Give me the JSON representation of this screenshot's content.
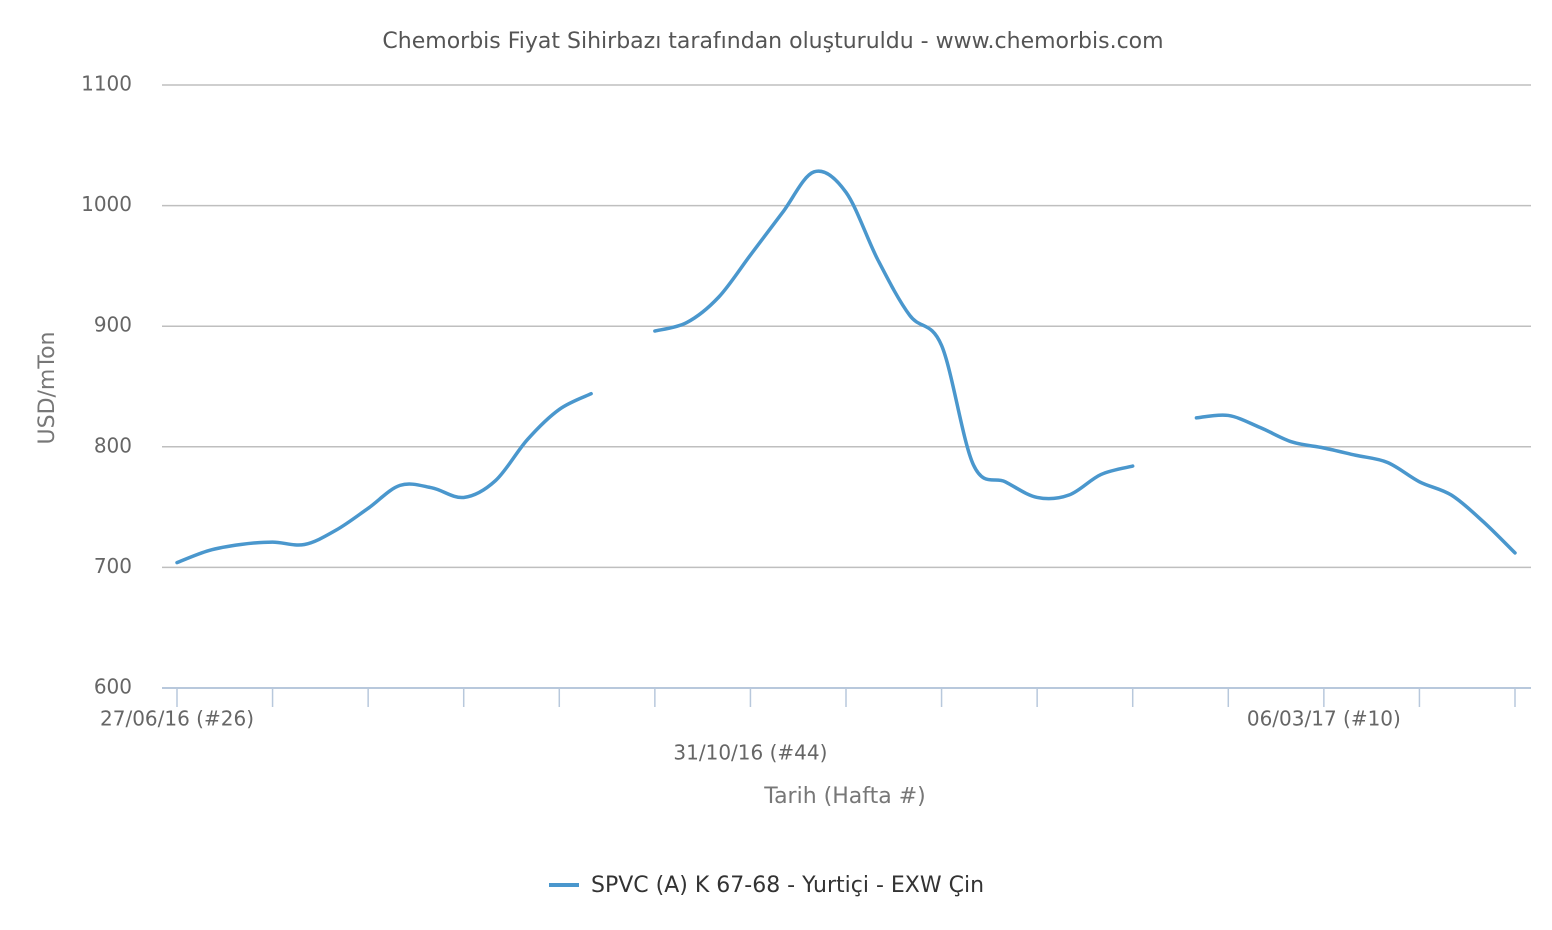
{
  "chart_data": {
    "type": "line",
    "title": "Chemorbis Fiyat Sihirbazı tarafından oluşturuldu - www.chemorbis.com",
    "y_label": "USD/mTon",
    "x_label": "Tarih (Hafta #)",
    "categories": [
      "27/06/16 (#26)",
      null,
      null,
      null,
      null,
      null,
      null,
      null,
      null,
      null,
      null,
      null,
      null,
      null,
      null,
      null,
      null,
      null,
      "31/10/16 (#44)",
      null,
      null,
      null,
      null,
      null,
      null,
      null,
      null,
      null,
      null,
      null,
      null,
      null,
      null,
      null,
      null,
      null,
      "06/03/17 (#10)",
      null,
      null,
      null,
      null,
      null,
      null
    ],
    "series": [
      {
        "name": "SPVC (A) K 67-68 - Yurtiçi - EXW Çin",
        "color": "#4a97cd",
        "values": [
          704,
          714,
          719,
          721,
          719,
          731,
          749,
          768,
          766,
          758,
          772,
          806,
          831,
          844,
          null,
          896,
          903,
          924,
          959,
          994,
          1028,
          1011,
          955,
          909,
          884,
          785,
          771,
          758,
          760,
          777,
          784,
          null,
          824,
          826,
          816,
          804,
          799,
          793,
          787,
          771,
          760,
          738,
          712
        ]
      }
    ],
    "ylim": [
      600,
      1100
    ],
    "yticks": [
      600,
      700,
      800,
      900,
      1000,
      1100
    ],
    "grid": true
  }
}
